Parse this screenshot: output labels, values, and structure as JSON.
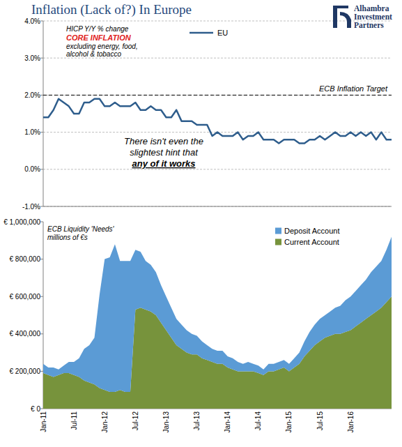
{
  "chart_data": [
    {
      "type": "line",
      "title": "Inflation (Lack of?) In Europe",
      "logo_text": [
        "Alhambra",
        "Investment",
        "Partners"
      ],
      "subtitle": "HICP Y/Y % change",
      "measure": "CORE INFLATION",
      "note": [
        "excluding energy, food,",
        "alcohol & tobacco"
      ],
      "annotation": [
        "There isn't even the",
        "slightest hint that"
      ],
      "annotation_emphasis": "any of it works",
      "target": {
        "value": 2,
        "label": "ECB Inflation Target"
      },
      "categories": [
        null,
        null,
        null,
        null,
        null,
        null,
        null,
        null,
        null,
        null,
        null,
        null,
        null,
        null,
        null,
        null,
        null,
        null,
        null,
        null,
        null,
        null,
        null,
        null,
        null,
        null,
        null,
        null,
        null,
        null,
        null,
        null,
        null,
        null,
        null,
        null,
        null,
        null,
        null,
        null,
        null,
        null,
        null,
        null,
        null,
        null,
        null,
        null,
        null,
        null,
        null,
        null,
        null,
        null,
        null,
        null,
        null,
        null,
        null,
        null,
        null,
        null,
        null,
        null,
        null,
        null,
        null,
        null,
        null
      ],
      "series": [
        {
          "name": "EU",
          "color": "#2e5d8c",
          "values": [
            1.4,
            1.4,
            1.6,
            1.9,
            1.8,
            1.7,
            1.5,
            1.5,
            1.8,
            1.8,
            1.9,
            1.9,
            1.7,
            1.7,
            1.8,
            1.7,
            1.7,
            1.7,
            1.8,
            1.6,
            1.6,
            1.7,
            1.6,
            1.6,
            1.4,
            1.4,
            1.6,
            1.3,
            1.3,
            1.3,
            1.2,
            1.2,
            1.2,
            0.9,
            1.0,
            0.9,
            0.9,
            0.9,
            1.0,
            0.8,
            0.9,
            0.9,
            1.0,
            0.8,
            0.8,
            0.8,
            0.7,
            0.8,
            0.8,
            0.8,
            0.7,
            0.7,
            0.8,
            0.8,
            0.9,
            0.8,
            0.9,
            1.0,
            0.9,
            0.9,
            1.0,
            0.9,
            1.0,
            0.9,
            1.0,
            0.8,
            1.0,
            0.8,
            0.8
          ]
        }
      ],
      "ylim": [
        -1,
        4
      ],
      "yticks": [
        {
          "value": -1,
          "label": "-1.0%"
        },
        {
          "value": 0,
          "label": "0.0%"
        },
        {
          "value": 1,
          "label": "1.0%"
        },
        {
          "value": 2,
          "label": "2.0%"
        },
        {
          "value": 3,
          "label": "3.0%"
        },
        {
          "value": 4,
          "label": "4.0%"
        }
      ],
      "grid": true,
      "legend": "top",
      "tick_labels": "y"
    },
    {
      "type": "area",
      "stacked": true,
      "title": "ECB Liquidity 'Needs'",
      "subtitle": "millions of €s",
      "categories": [
        "Jan-11",
        null,
        null,
        null,
        null,
        null,
        "Jul-11",
        null,
        null,
        null,
        null,
        null,
        "Jan-12",
        null,
        null,
        null,
        null,
        null,
        "Jul-12",
        null,
        null,
        null,
        null,
        null,
        "Jan-13",
        null,
        null,
        null,
        null,
        null,
        "Jul-13",
        null,
        null,
        null,
        null,
        null,
        "Jan-14",
        null,
        null,
        null,
        null,
        null,
        "Jul-14",
        null,
        null,
        null,
        null,
        null,
        "Jan-15",
        null,
        null,
        null,
        null,
        null,
        "Jul-15",
        null,
        null,
        null,
        null,
        null,
        "Jan-16",
        null,
        null,
        null,
        null,
        null,
        null,
        null,
        null
      ],
      "series": [
        {
          "name": "Current Account",
          "color": "#77933c",
          "values": [
            190000,
            180000,
            170000,
            180000,
            190000,
            190000,
            180000,
            170000,
            150000,
            140000,
            130000,
            110000,
            100000,
            90000,
            90000,
            100000,
            90000,
            90000,
            530000,
            540000,
            530000,
            520000,
            500000,
            460000,
            420000,
            380000,
            340000,
            320000,
            300000,
            290000,
            290000,
            270000,
            260000,
            250000,
            240000,
            240000,
            220000,
            210000,
            200000,
            200000,
            200000,
            200000,
            190000,
            180000,
            200000,
            200000,
            210000,
            220000,
            200000,
            220000,
            240000,
            280000,
            310000,
            340000,
            360000,
            380000,
            390000,
            400000,
            400000,
            410000,
            420000,
            440000,
            460000,
            480000,
            500000,
            520000,
            540000,
            570000,
            600000
          ]
        },
        {
          "name": "Deposit Account",
          "color": "#5b9bd5",
          "values": [
            50000,
            40000,
            50000,
            30000,
            40000,
            60000,
            70000,
            100000,
            170000,
            200000,
            250000,
            500000,
            700000,
            720000,
            790000,
            690000,
            700000,
            700000,
            320000,
            300000,
            260000,
            250000,
            230000,
            200000,
            180000,
            160000,
            140000,
            130000,
            120000,
            110000,
            100000,
            90000,
            80000,
            70000,
            70000,
            70000,
            60000,
            60000,
            50000,
            40000,
            50000,
            40000,
            40000,
            30000,
            40000,
            40000,
            40000,
            40000,
            40000,
            50000,
            60000,
            80000,
            100000,
            110000,
            120000,
            120000,
            130000,
            140000,
            150000,
            170000,
            180000,
            190000,
            200000,
            210000,
            230000,
            240000,
            250000,
            280000,
            320000
          ]
        }
      ],
      "ylim": [
        0,
        1000000
      ],
      "yticks": [
        {
          "value": 0,
          "label": "€ 0"
        },
        {
          "value": 200000,
          "label": "€ 200,000"
        },
        {
          "value": 400000,
          "label": "€ 400,000"
        },
        {
          "value": 600000,
          "label": "€ 600,000"
        },
        {
          "value": 800000,
          "label": "€ 800,000"
        },
        {
          "value": 1000000,
          "label": "€ 1,000,000"
        }
      ],
      "grid": false,
      "legend": "top-right"
    }
  ]
}
